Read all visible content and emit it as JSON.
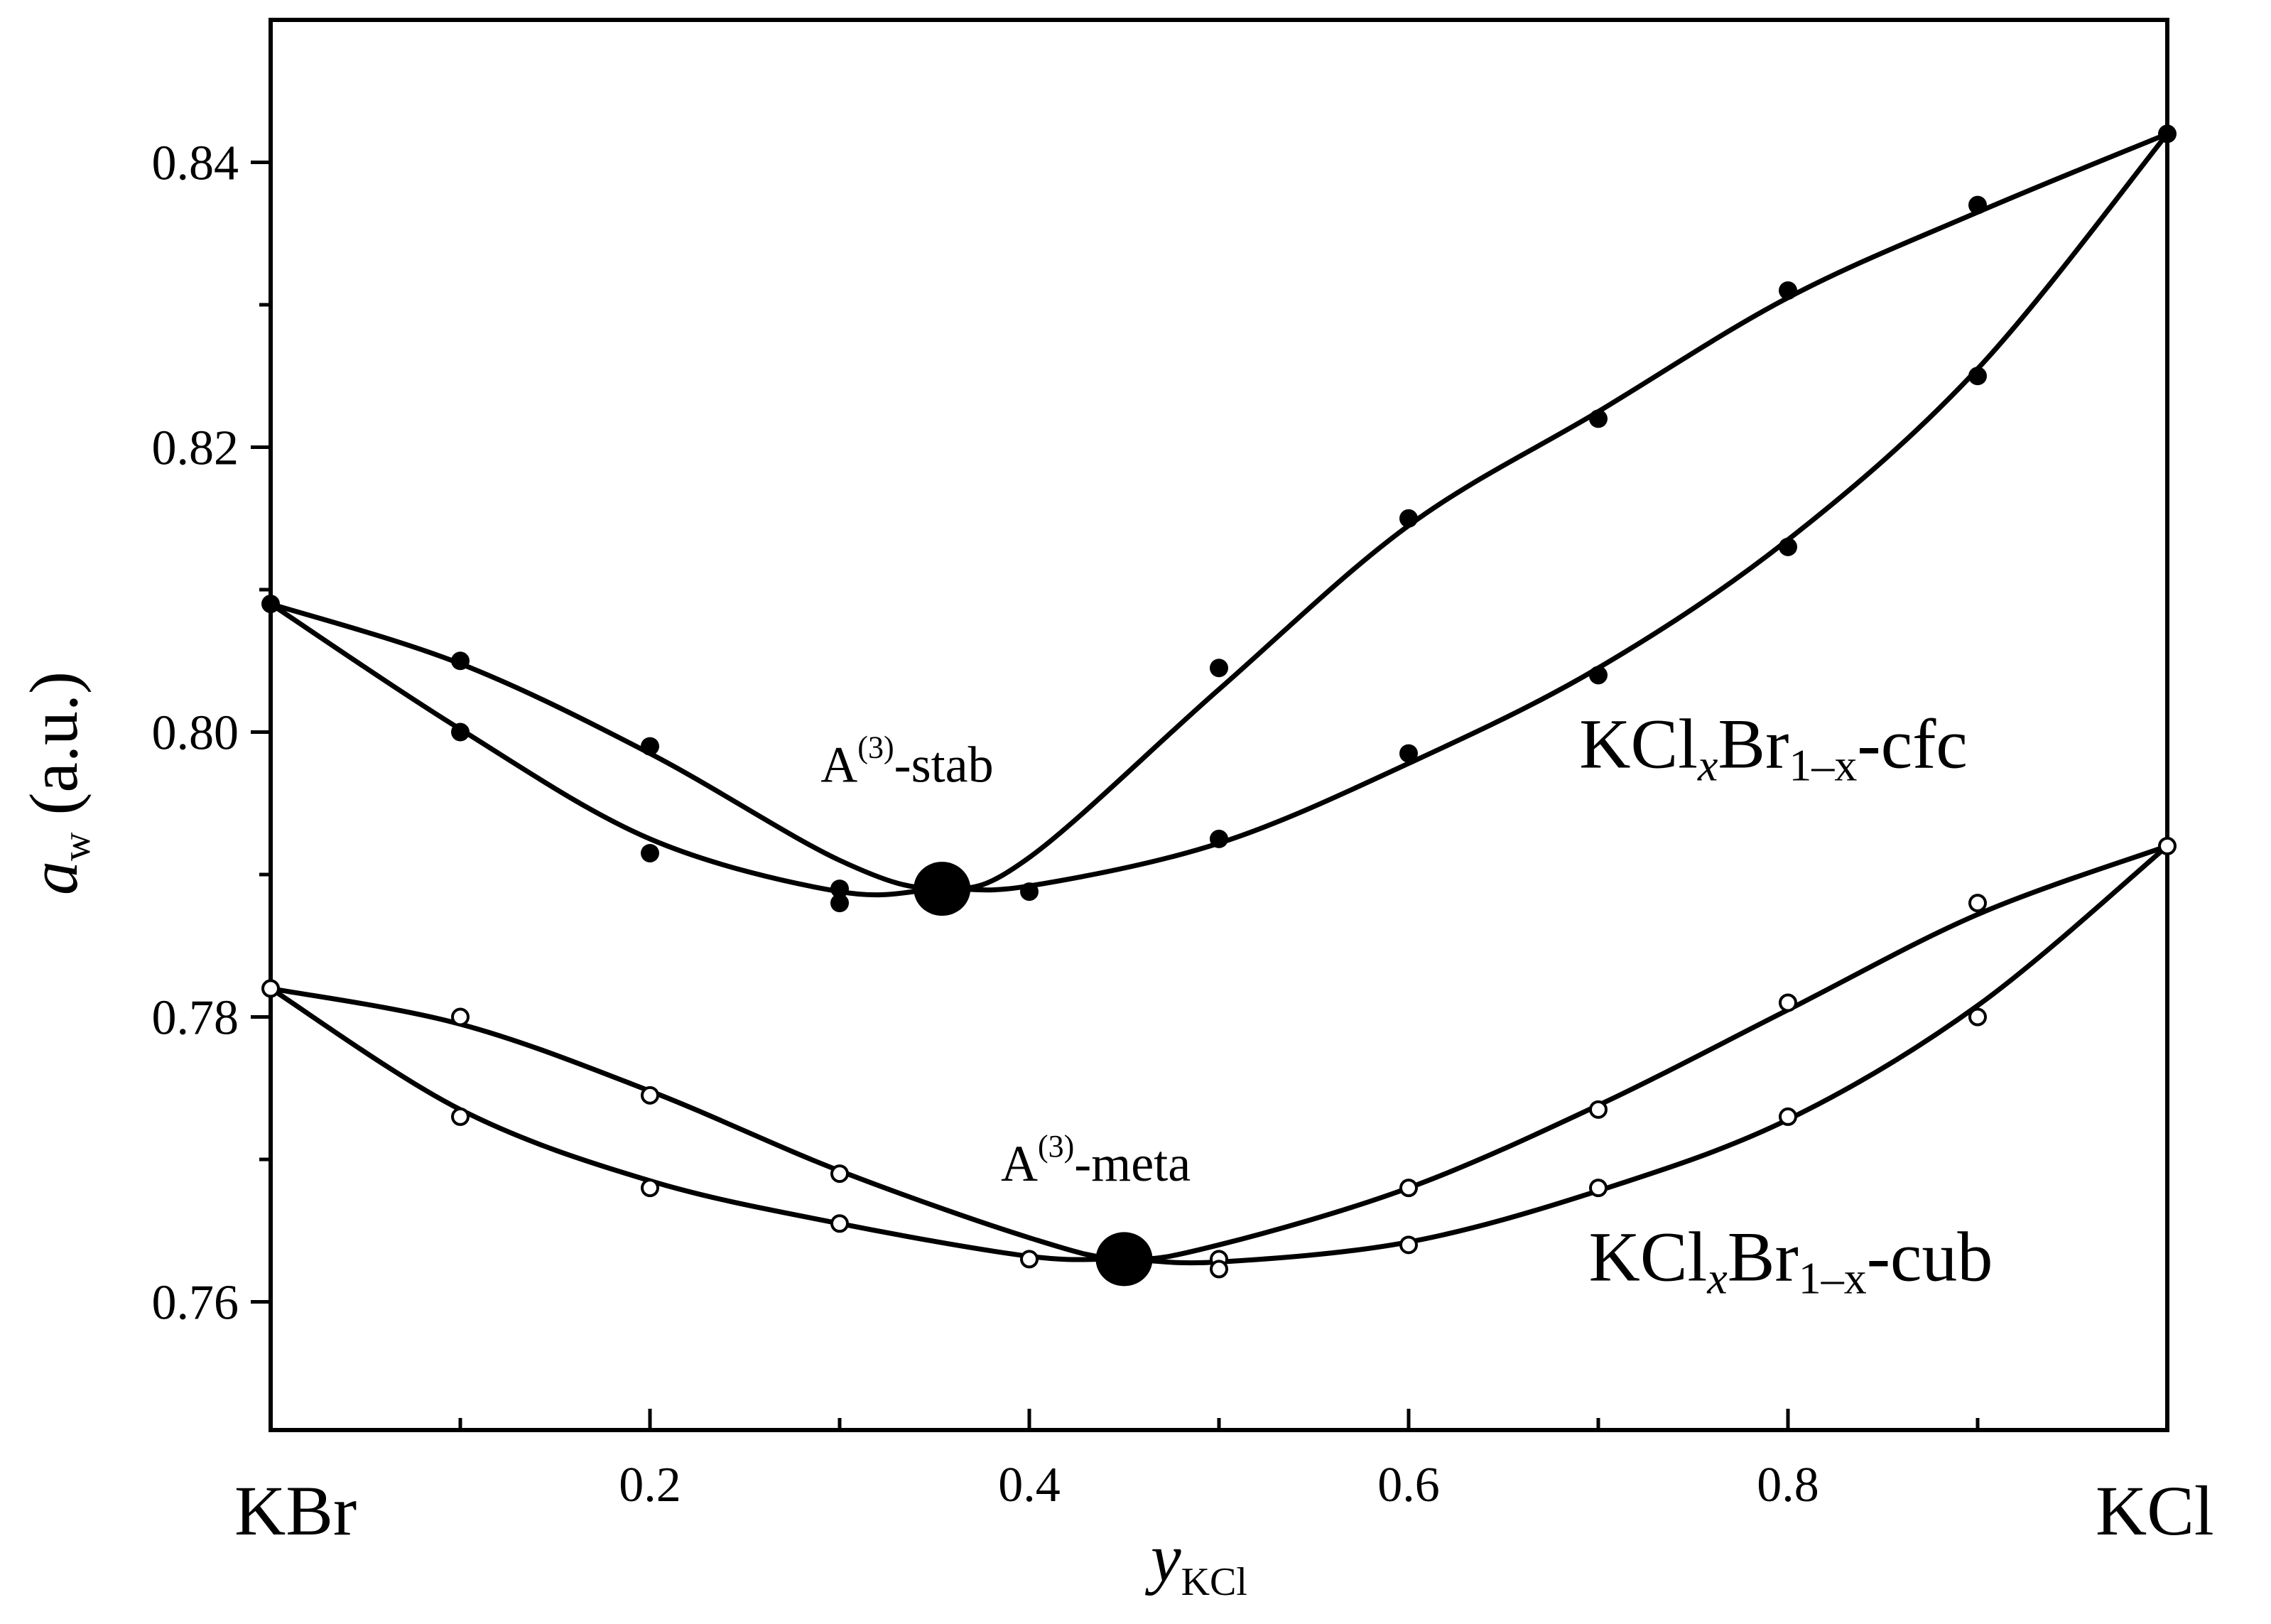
{
  "chart_data": {
    "type": "line",
    "xlabel": {
      "main": "y",
      "sub": "KCl"
    },
    "ylabel": {
      "main": "a",
      "sub": "w",
      "rest": " (a.u.)"
    },
    "xlim": [
      0,
      1
    ],
    "ylim": [
      0.751,
      0.85
    ],
    "xticks_major": [
      0.2,
      0.4,
      0.6,
      0.8
    ],
    "xtick_labels": [
      "0.2",
      "0.4",
      "0.6",
      "0.8"
    ],
    "xticks_minor": [
      0.1,
      0.3,
      0.5,
      0.7,
      0.9
    ],
    "yticks_major": [
      0.76,
      0.78,
      0.8,
      0.82,
      0.84
    ],
    "ytick_labels": [
      "0.76",
      "0.78",
      "0.80",
      "0.82",
      "0.84"
    ],
    "yticks_minor": [
      0.77,
      0.79,
      0.81,
      0.83
    ],
    "x_end_labels": {
      "left": "KBr",
      "right": "KCl"
    },
    "grid": false,
    "series": [
      {
        "name": "cfc-upper",
        "marker": "filled",
        "points": [
          [
            0,
            0.809
          ],
          [
            0.1,
            0.805
          ],
          [
            0.2,
            0.799
          ],
          [
            0.3,
            0.789
          ],
          [
            0.5,
            0.8045
          ],
          [
            0.6,
            0.815
          ],
          [
            0.7,
            0.822
          ],
          [
            0.8,
            0.831
          ],
          [
            0.9,
            0.837
          ],
          [
            1.0,
            0.842
          ]
        ],
        "curve": [
          [
            0,
            0.809
          ],
          [
            0.1,
            0.8048
          ],
          [
            0.2,
            0.7985
          ],
          [
            0.3,
            0.791
          ],
          [
            0.354,
            0.789
          ],
          [
            0.4,
            0.7912
          ],
          [
            0.5,
            0.803
          ],
          [
            0.6,
            0.8145
          ],
          [
            0.7,
            0.8225
          ],
          [
            0.8,
            0.8305
          ],
          [
            0.9,
            0.8365
          ],
          [
            1.0,
            0.842
          ]
        ]
      },
      {
        "name": "cfc-lower",
        "marker": "filled",
        "points": [
          [
            0.1,
            0.8
          ],
          [
            0.2,
            0.7915
          ],
          [
            0.3,
            0.788
          ],
          [
            0.4,
            0.7888
          ],
          [
            0.5,
            0.7925
          ],
          [
            0.6,
            0.7985
          ],
          [
            0.7,
            0.804
          ],
          [
            0.8,
            0.813
          ],
          [
            0.9,
            0.825
          ]
        ],
        "curve": [
          [
            0,
            0.809
          ],
          [
            0.1,
            0.8002
          ],
          [
            0.2,
            0.7925
          ],
          [
            0.3,
            0.7888
          ],
          [
            0.354,
            0.789
          ],
          [
            0.4,
            0.7892
          ],
          [
            0.5,
            0.7922
          ],
          [
            0.6,
            0.7978
          ],
          [
            0.7,
            0.8045
          ],
          [
            0.8,
            0.8135
          ],
          [
            0.9,
            0.8255
          ],
          [
            1.0,
            0.842
          ]
        ]
      },
      {
        "name": "cub-upper",
        "marker": "open",
        "points": [
          [
            0,
            0.782
          ],
          [
            0.1,
            0.78
          ],
          [
            0.2,
            0.7745
          ],
          [
            0.3,
            0.769
          ],
          [
            0.5,
            0.763
          ],
          [
            0.6,
            0.768
          ],
          [
            0.7,
            0.7735
          ],
          [
            0.8,
            0.781
          ],
          [
            0.9,
            0.788
          ],
          [
            1.0,
            0.792
          ]
        ],
        "curve": [
          [
            0,
            0.782
          ],
          [
            0.1,
            0.7795
          ],
          [
            0.2,
            0.7748
          ],
          [
            0.3,
            0.7692
          ],
          [
            0.4,
            0.7645
          ],
          [
            0.45,
            0.763
          ],
          [
            0.5,
            0.764
          ],
          [
            0.6,
            0.768
          ],
          [
            0.7,
            0.7738
          ],
          [
            0.8,
            0.7805
          ],
          [
            0.9,
            0.7872
          ],
          [
            1.0,
            0.792
          ]
        ]
      },
      {
        "name": "cub-lower",
        "marker": "open",
        "points": [
          [
            0.1,
            0.773
          ],
          [
            0.2,
            0.768
          ],
          [
            0.3,
            0.7655
          ],
          [
            0.4,
            0.763
          ],
          [
            0.5,
            0.7623
          ],
          [
            0.6,
            0.764
          ],
          [
            0.7,
            0.768
          ],
          [
            0.8,
            0.773
          ],
          [
            0.9,
            0.78
          ]
        ],
        "curve": [
          [
            0,
            0.782
          ],
          [
            0.1,
            0.7735
          ],
          [
            0.2,
            0.7685
          ],
          [
            0.3,
            0.7655
          ],
          [
            0.4,
            0.7632
          ],
          [
            0.45,
            0.763
          ],
          [
            0.5,
            0.7628
          ],
          [
            0.6,
            0.7642
          ],
          [
            0.7,
            0.7678
          ],
          [
            0.8,
            0.7728
          ],
          [
            0.9,
            0.7808
          ],
          [
            1.0,
            0.792
          ]
        ]
      }
    ],
    "special_points": [
      {
        "name": "A(3)-stab",
        "x": 0.354,
        "y": 0.789
      },
      {
        "name": "A(3)-meta",
        "x": 0.45,
        "y": 0.763
      }
    ],
    "annotations": {
      "stab": {
        "base": "A",
        "sup": "(3)",
        "suffix": "-stab",
        "x": 0.29,
        "y": 0.7965
      },
      "meta": {
        "base": "A",
        "sup": "(3)",
        "suffix": "-meta",
        "x": 0.385,
        "y": 0.7685
      },
      "cfc": {
        "p1": "KCl",
        "s1": "x",
        "p2": "Br",
        "s2": "1–x",
        "p3": "-cfc",
        "x": 0.69,
        "y": 0.7975
      },
      "cub": {
        "p1": "KCl",
        "s1": "x",
        "p2": "Br",
        "s2": "1–x",
        "p3": "-cub",
        "x": 0.695,
        "y": 0.7615
      }
    }
  }
}
